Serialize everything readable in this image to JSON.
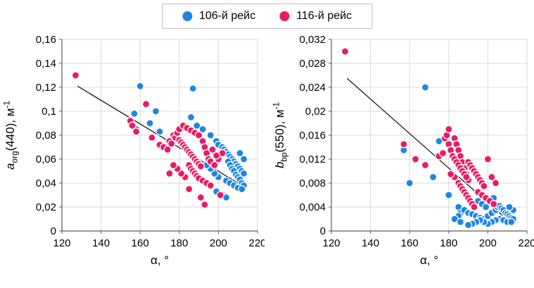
{
  "legend": {
    "items": [
      {
        "label": "106-й рейс",
        "color": "#1d85e4"
      },
      {
        "label": "116-й рейс",
        "color": "#ea1a64"
      }
    ]
  },
  "left_ylabel_parts": {
    "italic": "a",
    "sub": "org",
    "mid": "(440), м",
    "sup": "-1"
  },
  "right_ylabel_parts": {
    "italic": "b",
    "sub": "bp",
    "mid": "(550), м",
    "sup": "-1"
  },
  "chart_data": [
    {
      "type": "scatter",
      "title": "",
      "xlabel": "α, °",
      "ylabel": "a_org(440), м^-1",
      "xlim": [
        120,
        220
      ],
      "ylim": [
        0,
        0.16
      ],
      "grid": true,
      "legend_position": "top",
      "xticks": [
        120,
        140,
        160,
        180,
        200,
        220
      ],
      "xtick_labels": [
        "120",
        "140",
        "160",
        "180",
        "200",
        "220"
      ],
      "yticks": [
        0,
        0.02,
        0.04,
        0.06,
        0.08,
        0.1,
        0.12,
        0.14,
        0.16
      ],
      "ytick_labels": [
        "0",
        "0,02",
        "0,04",
        "0,06",
        "0,08",
        "0,1",
        "0,12",
        "0,14",
        "0,16"
      ],
      "trendline": {
        "x1": 128,
        "y1": 0.121,
        "x2": 213,
        "y2": 0.037,
        "color": "#1a1a1a"
      },
      "series": [
        {
          "name": "106-й рейс",
          "color": "#1d85e4",
          "points": [
            [
              160,
              0.121
            ],
            [
              187,
              0.119
            ],
            [
              168,
              0.1
            ],
            [
              157,
              0.098
            ],
            [
              165,
              0.09
            ],
            [
              158,
              0.085
            ],
            [
              170,
              0.083
            ],
            [
              186,
              0.095
            ],
            [
              189,
              0.088
            ],
            [
              183,
              0.086
            ],
            [
              192,
              0.085
            ],
            [
              196,
              0.08
            ],
            [
              199,
              0.075
            ],
            [
              200,
              0.072
            ],
            [
              202,
              0.07
            ],
            [
              203,
              0.068
            ],
            [
              204,
              0.066
            ],
            [
              205,
              0.064
            ],
            [
              206,
              0.062
            ],
            [
              207,
              0.06
            ],
            [
              208,
              0.058
            ],
            [
              209,
              0.056
            ],
            [
              210,
              0.054
            ],
            [
              211,
              0.052
            ],
            [
              212,
              0.05
            ],
            [
              213,
              0.048
            ],
            [
              205,
              0.058
            ],
            [
              206,
              0.055
            ],
            [
              207,
              0.052
            ],
            [
              208,
              0.05
            ],
            [
              209,
              0.047
            ],
            [
              210,
              0.045
            ],
            [
              211,
              0.043
            ],
            [
              212,
              0.04
            ],
            [
              213,
              0.038
            ],
            [
              204,
              0.042
            ],
            [
              206,
              0.04
            ],
            [
              208,
              0.038
            ],
            [
              210,
              0.036
            ],
            [
              212,
              0.035
            ],
            [
              200,
              0.045
            ],
            [
              198,
              0.048
            ],
            [
              196,
              0.052
            ],
            [
              194,
              0.055
            ],
            [
              202,
              0.03
            ],
            [
              204,
              0.028
            ],
            [
              199,
              0.033
            ],
            [
              213,
              0.06
            ],
            [
              211,
              0.065
            ]
          ]
        },
        {
          "name": "116-й рейс",
          "color": "#ea1a64",
          "points": [
            [
              127,
              0.13
            ],
            [
              155,
              0.092
            ],
            [
              156,
              0.088
            ],
            [
              158,
              0.083
            ],
            [
              163,
              0.106
            ],
            [
              166,
              0.078
            ],
            [
              170,
              0.072
            ],
            [
              172,
              0.07
            ],
            [
              174,
              0.068
            ],
            [
              175,
              0.075
            ],
            [
              176,
              0.073
            ],
            [
              177,
              0.08
            ],
            [
              178,
              0.078
            ],
            [
              179,
              0.082
            ],
            [
              180,
              0.076
            ],
            [
              181,
              0.074
            ],
            [
              182,
              0.072
            ],
            [
              183,
              0.07
            ],
            [
              184,
              0.068
            ],
            [
              185,
              0.066
            ],
            [
              186,
              0.064
            ],
            [
              187,
              0.062
            ],
            [
              188,
              0.06
            ],
            [
              189,
              0.058
            ],
            [
              190,
              0.056
            ],
            [
              191,
              0.054
            ],
            [
              180,
              0.085
            ],
            [
              182,
              0.088
            ],
            [
              184,
              0.086
            ],
            [
              186,
              0.084
            ],
            [
              188,
              0.082
            ],
            [
              190,
              0.08
            ],
            [
              192,
              0.075
            ],
            [
              193,
              0.07
            ],
            [
              194,
              0.065
            ],
            [
              195,
              0.06
            ],
            [
              196,
              0.058
            ],
            [
              185,
              0.055
            ],
            [
              186,
              0.052
            ],
            [
              187,
              0.05
            ],
            [
              188,
              0.048
            ],
            [
              189,
              0.046
            ],
            [
              190,
              0.044
            ],
            [
              192,
              0.042
            ],
            [
              194,
              0.04
            ],
            [
              196,
              0.038
            ],
            [
              183,
              0.045
            ],
            [
              181,
              0.048
            ],
            [
              179,
              0.052
            ],
            [
              177,
              0.055
            ],
            [
              198,
              0.055
            ],
            [
              200,
              0.06
            ],
            [
              202,
              0.065
            ],
            [
              197,
              0.068
            ],
            [
              199,
              0.063
            ],
            [
              191,
              0.028
            ],
            [
              193,
              0.022
            ],
            [
              201,
              0.03
            ],
            [
              185,
              0.035
            ],
            [
              175,
              0.048
            ]
          ]
        }
      ]
    },
    {
      "type": "scatter",
      "title": "",
      "xlabel": "α, °",
      "ylabel": "b_bp(550), м^-1",
      "xlim": [
        120,
        220
      ],
      "ylim": [
        0,
        0.032
      ],
      "grid": true,
      "legend_position": "top",
      "xticks": [
        120,
        140,
        160,
        180,
        200,
        220
      ],
      "xtick_labels": [
        "120",
        "140",
        "160",
        "180",
        "200",
        "220"
      ],
      "yticks": [
        0,
        0.004,
        0.008,
        0.012,
        0.016,
        0.02,
        0.024,
        0.028,
        0.032
      ],
      "ytick_labels": [
        "0",
        "0,004",
        "0,008",
        "0,012",
        "0,016",
        "0,02",
        "0,024",
        "0,028",
        "0,032"
      ],
      "trendline": {
        "x1": 128,
        "y1": 0.0255,
        "x2": 213,
        "y2": 0.001,
        "color": "#1a1a1a"
      },
      "series": [
        {
          "name": "106-й рейс",
          "color": "#1d85e4",
          "points": [
            [
              168,
              0.024
            ],
            [
              157,
              0.0135
            ],
            [
              175,
              0.015
            ],
            [
              160,
              0.008
            ],
            [
              172,
              0.009
            ],
            [
              180,
              0.006
            ],
            [
              185,
              0.004
            ],
            [
              186,
              0.003
            ],
            [
              188,
              0.0035
            ],
            [
              190,
              0.003
            ],
            [
              192,
              0.0028
            ],
            [
              194,
              0.0025
            ],
            [
              196,
              0.0022
            ],
            [
              198,
              0.002
            ],
            [
              200,
              0.0025
            ],
            [
              202,
              0.003
            ],
            [
              204,
              0.0035
            ],
            [
              205,
              0.004
            ],
            [
              206,
              0.0042
            ],
            [
              207,
              0.0038
            ],
            [
              208,
              0.0035
            ],
            [
              209,
              0.003
            ],
            [
              210,
              0.0028
            ],
            [
              211,
              0.0025
            ],
            [
              212,
              0.0022
            ],
            [
              213,
              0.002
            ],
            [
              206,
              0.002
            ],
            [
              208,
              0.0018
            ],
            [
              210,
              0.0015
            ],
            [
              212,
              0.0015
            ],
            [
              204,
              0.0018
            ],
            [
              202,
              0.0015
            ],
            [
              200,
              0.0012
            ],
            [
              198,
              0.0015
            ],
            [
              196,
              0.0018
            ],
            [
              194,
              0.0015
            ],
            [
              192,
              0.0012
            ],
            [
              190,
              0.001
            ],
            [
              195,
              0.005
            ],
            [
              197,
              0.0045
            ],
            [
              199,
              0.004
            ],
            [
              201,
              0.005
            ],
            [
              203,
              0.0055
            ],
            [
              189,
              0.006
            ],
            [
              187,
              0.007
            ],
            [
              185,
              0.0025
            ],
            [
              183,
              0.002
            ],
            [
              186,
              0.0015
            ],
            [
              213,
              0.0035
            ],
            [
              211,
              0.004
            ]
          ]
        },
        {
          "name": "116-й рейс",
          "color": "#ea1a64",
          "points": [
            [
              127,
              0.03
            ],
            [
              157,
              0.0145
            ],
            [
              163,
              0.012
            ],
            [
              168,
              0.011
            ],
            [
              175,
              0.0125
            ],
            [
              177,
              0.013
            ],
            [
              178,
              0.0155
            ],
            [
              179,
              0.016
            ],
            [
              180,
              0.017
            ],
            [
              180,
              0.0145
            ],
            [
              181,
              0.0135
            ],
            [
              182,
              0.0125
            ],
            [
              183,
              0.0155
            ],
            [
              184,
              0.0145
            ],
            [
              185,
              0.0135
            ],
            [
              186,
              0.0125
            ],
            [
              187,
              0.0115
            ],
            [
              188,
              0.0105
            ],
            [
              189,
              0.0095
            ],
            [
              190,
              0.0085
            ],
            [
              183,
              0.012
            ],
            [
              184,
              0.0115
            ],
            [
              185,
              0.011
            ],
            [
              186,
              0.0105
            ],
            [
              187,
              0.01
            ],
            [
              188,
              0.0095
            ],
            [
              189,
              0.009
            ],
            [
              190,
              0.0115
            ],
            [
              191,
              0.011
            ],
            [
              192,
              0.0105
            ],
            [
              193,
              0.01
            ],
            [
              194,
              0.0095
            ],
            [
              195,
              0.009
            ],
            [
              196,
              0.0085
            ],
            [
              197,
              0.008
            ],
            [
              198,
              0.0075
            ],
            [
              185,
              0.008
            ],
            [
              186,
              0.0075
            ],
            [
              187,
              0.007
            ],
            [
              188,
              0.0065
            ],
            [
              189,
              0.006
            ],
            [
              190,
              0.0055
            ],
            [
              191,
              0.005
            ],
            [
              192,
              0.0045
            ],
            [
              193,
              0.004
            ],
            [
              200,
              0.012
            ],
            [
              202,
              0.009
            ],
            [
              204,
              0.008
            ],
            [
              195,
              0.0065
            ],
            [
              197,
              0.006
            ],
            [
              199,
              0.0055
            ],
            [
              201,
              0.005
            ],
            [
              203,
              0.0045
            ],
            [
              183,
              0.009
            ],
            [
              181,
              0.0095
            ]
          ]
        }
      ]
    }
  ]
}
